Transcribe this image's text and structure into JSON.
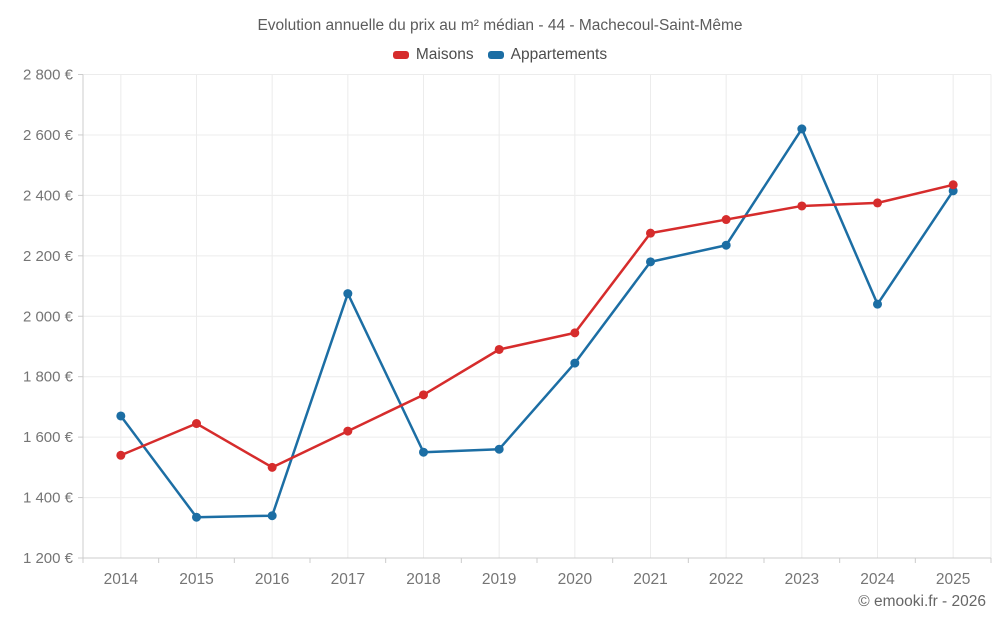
{
  "title": "Evolution annuelle du prix au m² médian - 44 - Machecoul-Saint-Même",
  "footer": {
    "text": "© emooki.fr - 2026"
  },
  "colors": {
    "maisons": "#d62c2c",
    "appartements": "#1c6ea4",
    "grid": "#ececec",
    "axis_border": "#cccccc",
    "tick": "#cccccc",
    "tick_text": "#757575",
    "title_text": "#5c5c5c",
    "legend_text": "#4d4d4d",
    "footer_text": "#666666"
  },
  "legend": {
    "items": [
      {
        "label": "Maisons",
        "color": "#d62c2c"
      },
      {
        "label": "Appartements",
        "color": "#1c6ea4"
      }
    ]
  },
  "chart_data": {
    "type": "line",
    "title": "Evolution annuelle du prix au m² médian - 44 - Machecoul-Saint-Même",
    "x": [
      "2014",
      "2015",
      "2016",
      "2017",
      "2018",
      "2019",
      "2020",
      "2021",
      "2022",
      "2023",
      "2024",
      "2025"
    ],
    "series": [
      {
        "name": "Maisons",
        "color": "#d62c2c",
        "values": [
          1540,
          1645,
          1500,
          1620,
          1740,
          1890,
          1945,
          2275,
          2320,
          2365,
          2375,
          2435
        ]
      },
      {
        "name": "Appartements",
        "color": "#1c6ea4",
        "values": [
          1670,
          1335,
          1340,
          2075,
          1550,
          1560,
          1845,
          2180,
          2235,
          2620,
          2040,
          2415
        ]
      }
    ],
    "ylim": [
      1200,
      2800
    ],
    "y_step": 200,
    "y_ticks": [
      {
        "value": 1200,
        "label": "1 200 €"
      },
      {
        "value": 1400,
        "label": "1 400 €"
      },
      {
        "value": 1600,
        "label": "1 600 €"
      },
      {
        "value": 1800,
        "label": "1 800 €"
      },
      {
        "value": 2000,
        "label": "2 000 €"
      },
      {
        "value": 2200,
        "label": "2 200 €"
      },
      {
        "value": 2400,
        "label": "2 400 €"
      },
      {
        "value": 2600,
        "label": "2 600 €"
      },
      {
        "value": 2800,
        "label": "2 800 €"
      }
    ],
    "unit": "€",
    "grid": true,
    "legend_position": "top"
  }
}
